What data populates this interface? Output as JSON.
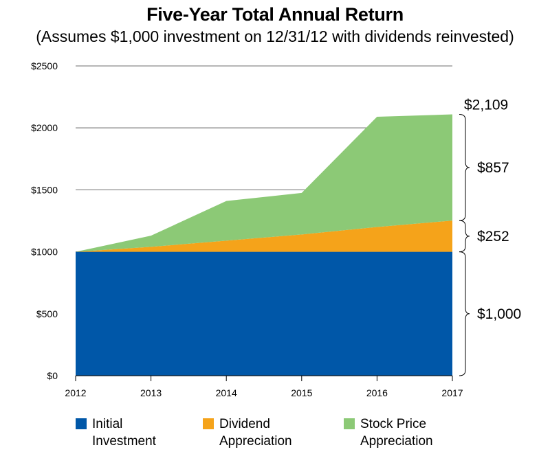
{
  "chart_data": {
    "type": "area",
    "title": "Five-Year Total Annual Return",
    "subtitle": "(Assumes $1,000 investment on 12/31/12 with dividends reinvested)",
    "x": [
      "2012",
      "2013",
      "2014",
      "2015",
      "2016",
      "2017"
    ],
    "y_ticks": [
      "$0",
      "$500",
      "$1000",
      "$1500",
      "$2000",
      "$2500"
    ],
    "ylim": [
      0,
      2500
    ],
    "grid": true,
    "stacked": true,
    "series": [
      {
        "name": "Initial Investment",
        "color": "#0057a8",
        "values": [
          1000,
          1000,
          1000,
          1000,
          1000,
          1000
        ]
      },
      {
        "name": "Dividend Appreciation",
        "color": "#f5a31a",
        "values": [
          0,
          40,
          90,
          140,
          200,
          252
        ]
      },
      {
        "name": "Stock Price Appreciation",
        "color": "#8cc976",
        "values": [
          0,
          90,
          320,
          335,
          890,
          857
        ]
      }
    ],
    "legend_position": "bottom",
    "annotations": {
      "total": "$2,109",
      "stock": "$857",
      "dividend": "$252",
      "initial": "$1,000"
    }
  },
  "legend": [
    {
      "label": "Initial\nInvestment",
      "color": "#0057a8"
    },
    {
      "label": "Dividend\nAppreciation",
      "color": "#f5a31a"
    },
    {
      "label": "Stock Price\nAppreciation",
      "color": "#8cc976"
    }
  ]
}
